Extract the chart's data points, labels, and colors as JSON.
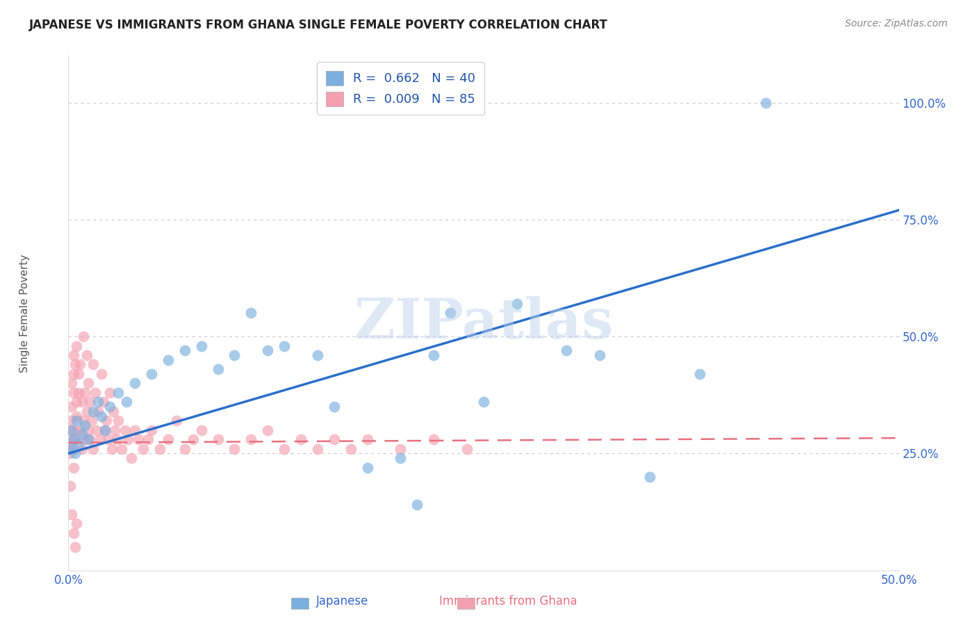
{
  "title": "JAPANESE VS IMMIGRANTS FROM GHANA SINGLE FEMALE POVERTY CORRELATION CHART",
  "source": "Source: ZipAtlas.com",
  "xlabel_japanese": "Japanese",
  "xlabel_ghana": "Immigrants from Ghana",
  "ylabel": "Single Female Poverty",
  "xlim": [
    0.0,
    0.5
  ],
  "ylim": [
    0.0,
    1.1
  ],
  "x_ticks": [
    0.0,
    0.1,
    0.2,
    0.3,
    0.4,
    0.5
  ],
  "x_tick_labels": [
    "0.0%",
    "",
    "",
    "",
    "",
    "50.0%"
  ],
  "y_ticks": [
    0.0,
    0.25,
    0.5,
    0.75,
    1.0
  ],
  "y_tick_labels": [
    "",
    "25.0%",
    "50.0%",
    "75.0%",
    "100.0%"
  ],
  "blue_color": "#7AAFE0",
  "pink_color": "#F4A0B0",
  "blue_line_color": "#2B6FCC",
  "pink_line_color": "#E87080",
  "watermark": "ZIPatlas",
  "blue_line_x0": 0.0,
  "blue_line_y0": 0.25,
  "blue_line_x1": 0.5,
  "blue_line_y1": 0.77,
  "pink_line_x0": 0.0,
  "pink_line_y0": 0.273,
  "pink_line_x1": 0.5,
  "pink_line_y1": 0.283,
  "japanese_x": [
    0.001,
    0.002,
    0.003,
    0.004,
    0.005,
    0.006,
    0.008,
    0.01,
    0.012,
    0.015,
    0.018,
    0.02,
    0.022,
    0.025,
    0.03,
    0.035,
    0.04,
    0.05,
    0.06,
    0.07,
    0.08,
    0.09,
    0.1,
    0.11,
    0.12,
    0.13,
    0.15,
    0.16,
    0.18,
    0.2,
    0.21,
    0.22,
    0.23,
    0.25,
    0.27,
    0.3,
    0.32,
    0.35,
    0.38,
    0.42
  ],
  "japanese_y": [
    0.26,
    0.3,
    0.28,
    0.25,
    0.32,
    0.27,
    0.29,
    0.31,
    0.28,
    0.34,
    0.36,
    0.33,
    0.3,
    0.35,
    0.38,
    0.36,
    0.4,
    0.42,
    0.45,
    0.47,
    0.48,
    0.43,
    0.46,
    0.55,
    0.47,
    0.48,
    0.46,
    0.35,
    0.22,
    0.24,
    0.14,
    0.46,
    0.55,
    0.36,
    0.57,
    0.47,
    0.46,
    0.2,
    0.42,
    1.0
  ],
  "ghana_x": [
    0.001,
    0.001,
    0.001,
    0.002,
    0.002,
    0.002,
    0.002,
    0.003,
    0.003,
    0.003,
    0.003,
    0.003,
    0.004,
    0.004,
    0.004,
    0.005,
    0.005,
    0.005,
    0.006,
    0.006,
    0.007,
    0.007,
    0.008,
    0.008,
    0.009,
    0.009,
    0.01,
    0.01,
    0.011,
    0.011,
    0.012,
    0.012,
    0.013,
    0.013,
    0.014,
    0.015,
    0.015,
    0.016,
    0.017,
    0.018,
    0.019,
    0.02,
    0.021,
    0.022,
    0.023,
    0.024,
    0.025,
    0.026,
    0.027,
    0.028,
    0.029,
    0.03,
    0.032,
    0.034,
    0.036,
    0.038,
    0.04,
    0.042,
    0.045,
    0.048,
    0.05,
    0.055,
    0.06,
    0.065,
    0.07,
    0.075,
    0.08,
    0.09,
    0.1,
    0.11,
    0.12,
    0.13,
    0.14,
    0.15,
    0.16,
    0.17,
    0.18,
    0.2,
    0.22,
    0.24,
    0.001,
    0.002,
    0.003,
    0.004,
    0.005
  ],
  "ghana_y": [
    0.27,
    0.25,
    0.3,
    0.35,
    0.32,
    0.28,
    0.4,
    0.26,
    0.38,
    0.42,
    0.22,
    0.46,
    0.3,
    0.44,
    0.28,
    0.36,
    0.48,
    0.33,
    0.42,
    0.38,
    0.3,
    0.44,
    0.26,
    0.36,
    0.5,
    0.32,
    0.38,
    0.28,
    0.46,
    0.34,
    0.4,
    0.3,
    0.36,
    0.28,
    0.32,
    0.44,
    0.26,
    0.38,
    0.3,
    0.34,
    0.28,
    0.42,
    0.36,
    0.3,
    0.32,
    0.28,
    0.38,
    0.26,
    0.34,
    0.3,
    0.28,
    0.32,
    0.26,
    0.3,
    0.28,
    0.24,
    0.3,
    0.28,
    0.26,
    0.28,
    0.3,
    0.26,
    0.28,
    0.32,
    0.26,
    0.28,
    0.3,
    0.28,
    0.26,
    0.28,
    0.3,
    0.26,
    0.28,
    0.26,
    0.28,
    0.26,
    0.28,
    0.26,
    0.28,
    0.26,
    0.18,
    0.12,
    0.08,
    0.05,
    0.1
  ]
}
